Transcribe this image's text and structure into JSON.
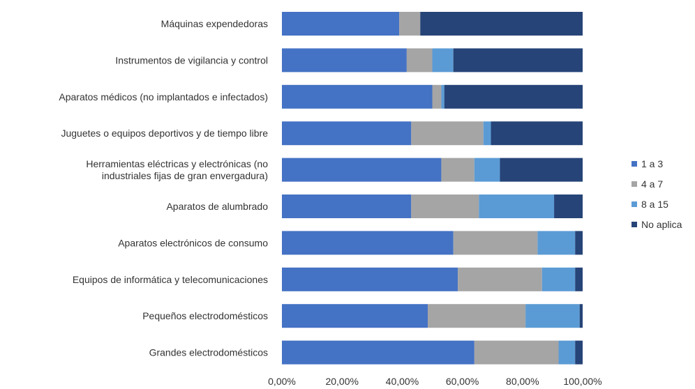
{
  "chart_data": {
    "type": "bar",
    "orientation": "horizontal",
    "stacked": true,
    "title": "",
    "xlabel": "",
    "ylabel": "",
    "xlim": [
      0,
      100
    ],
    "x_tick_labels": [
      "0,00%",
      "20,00%",
      "40,00%",
      "60,00%",
      "80,00%",
      "100,00%"
    ],
    "x_tick_values": [
      0,
      20,
      40,
      60,
      80,
      100
    ],
    "grid": false,
    "legend_position": "right",
    "categories": [
      [
        "Máquinas expendedoras"
      ],
      [
        "Instrumentos de vigilancia y control"
      ],
      [
        "Aparatos médicos (no implantados e infectados)"
      ],
      [
        "Juguetes o equipos deportivos y de tiempo libre"
      ],
      [
        "Herramientas eléctricas y electrónicas (no",
        "industriales fijas de gran envergadura)"
      ],
      [
        "Aparatos de alumbrado"
      ],
      [
        "Aparatos electrónicos de consumo"
      ],
      [
        "Equipos de informática y telecomunicaciones"
      ],
      [
        "Pequeños electrodomésticos"
      ],
      [
        "Grandes electrodomésticos"
      ]
    ],
    "series": [
      {
        "name": "1 a 3",
        "color": "#4472c4",
        "values": [
          39,
          41.5,
          50,
          43,
          53,
          43,
          57,
          58.5,
          48.5,
          64
        ]
      },
      {
        "name": "4 a 7",
        "color": "#a5a5a5",
        "values": [
          7,
          8.5,
          3,
          24,
          11,
          22.5,
          28,
          28,
          32.5,
          28
        ]
      },
      {
        "name": "8 a 15",
        "color": "#5b9bd5",
        "values": [
          0,
          7,
          1,
          2.5,
          8.5,
          25,
          12.5,
          11,
          18,
          5.5
        ]
      },
      {
        "name": "No aplica",
        "color": "#264478",
        "values": [
          54,
          43,
          46,
          30.5,
          27.5,
          9.5,
          2.5,
          2.5,
          1,
          2.5
        ]
      }
    ]
  }
}
